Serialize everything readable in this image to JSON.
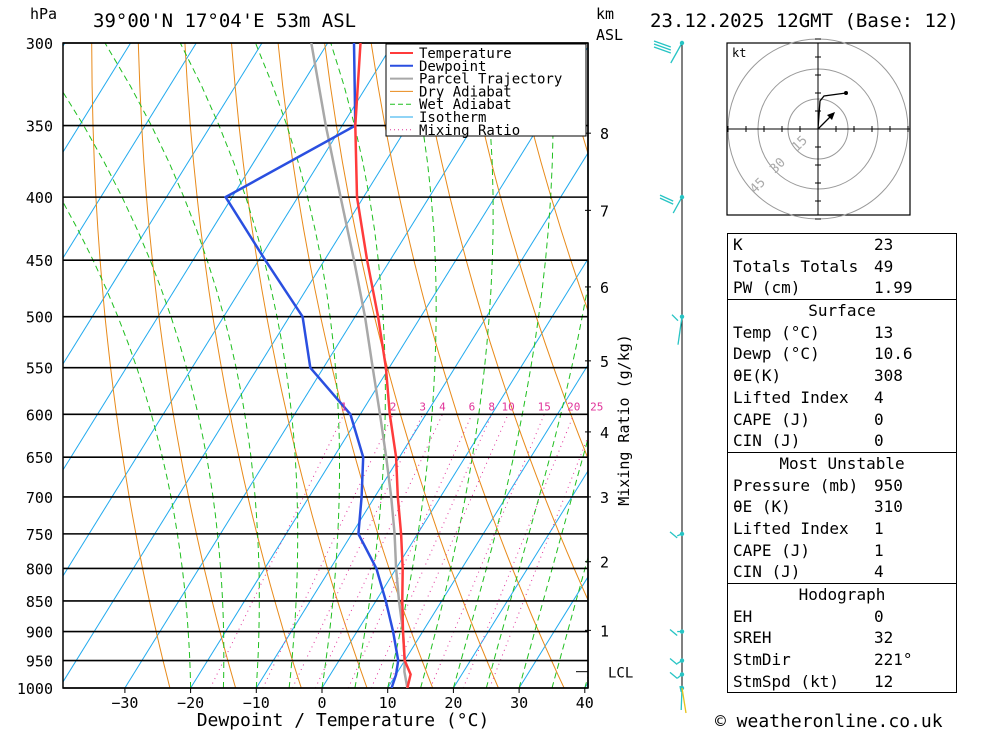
{
  "header": {
    "location": "39°00'N 17°04'E 53m ASL",
    "datetime": "23.12.2025 12GMT (Base: 12)",
    "hpa_label": "hPa",
    "km_label": "km",
    "asl_label": "ASL",
    "copyright": "© weatheronline.co.uk"
  },
  "colors": {
    "temperature": "#ff3b3b",
    "dewpoint": "#2a4fe0",
    "parcel": "#a8a8a8",
    "dry_adiabat": "#e88a1a",
    "wet_adiabat": "#1fbf1f",
    "isotherm": "#22aaee",
    "mixing_ratio": "#e0349a",
    "wind": "#27c4c4"
  },
  "chart_data": {
    "type": "line",
    "title": "Skew-T log-P diagram",
    "xlabel": "Dewpoint / Temperature (°C)",
    "ylabel": "hPa",
    "secondary_ylabel": "Mixing Ratio (g/kg)",
    "xlim": [
      -40,
      40
    ],
    "ylim": [
      1000,
      300
    ],
    "x_ticks": [
      -30,
      -20,
      -10,
      0,
      10,
      20,
      30,
      40
    ],
    "x_tick_labels": [
      "−30",
      "−20",
      "−10",
      "0",
      "10",
      "20",
      "30",
      "40"
    ],
    "pressure_levels": [
      300,
      350,
      400,
      450,
      500,
      550,
      600,
      650,
      700,
      750,
      800,
      850,
      900,
      950,
      1000
    ],
    "pressure_labels": [
      "300",
      "350",
      "400",
      "450",
      "500",
      "550",
      "600",
      "650",
      "700",
      "750",
      "800",
      "850",
      "900",
      "950",
      "1000"
    ],
    "km_ticks": [
      {
        "label": "8",
        "p": 355
      },
      {
        "label": "7",
        "p": 410
      },
      {
        "label": "6",
        "p": 473
      },
      {
        "label": "5",
        "p": 543
      },
      {
        "label": "4",
        "p": 620
      },
      {
        "label": "3",
        "p": 700
      },
      {
        "label": "2",
        "p": 790
      },
      {
        "label": "1",
        "p": 898
      }
    ],
    "lcl_label": "LCL",
    "lcl_p": 970,
    "mixing_ratio_labels": [
      "1",
      "2",
      "3",
      "4",
      "6",
      "8",
      "10",
      "15",
      "20",
      "25"
    ],
    "legend": [
      "Temperature",
      "Dewpoint",
      "Parcel Trajectory",
      "Dry Adiabat",
      "Wet Adiabat",
      "Isotherm",
      "Mixing Ratio"
    ],
    "series": [
      {
        "name": "Temperature",
        "p": [
          1000,
          975,
          950,
          900,
          850,
          800,
          750,
          700,
          650,
          600,
          550,
          500,
          450,
          400,
          350,
          300
        ],
        "t": [
          13.0,
          12.2,
          10.0,
          7.0,
          4.0,
          1.0,
          -2.5,
          -6.5,
          -10.5,
          -15.5,
          -20.5,
          -26.5,
          -33.5,
          -41.0,
          -48.0,
          -55.0
        ]
      },
      {
        "name": "Dewpoint",
        "p": [
          1000,
          975,
          950,
          900,
          850,
          800,
          750,
          700,
          650,
          600,
          550,
          500,
          450,
          400,
          350,
          300
        ],
        "t": [
          10.6,
          10.0,
          9.0,
          5.5,
          1.5,
          -3.0,
          -9.0,
          -12.0,
          -15.5,
          -21.5,
          -32.0,
          -38.0,
          -49.0,
          -61.0,
          -48.0,
          -56.0
        ]
      },
      {
        "name": "Parcel Trajectory",
        "p": [
          1000,
          970,
          950,
          900,
          850,
          800,
          750,
          700,
          650,
          600,
          550,
          500,
          450,
          400,
          350,
          300
        ],
        "t": [
          13.0,
          11.0,
          10.0,
          7.0,
          3.5,
          0.0,
          -3.5,
          -7.5,
          -12.0,
          -17.0,
          -22.5,
          -28.5,
          -35.5,
          -43.5,
          -52.5,
          -62.5
        ]
      }
    ],
    "hodograph": {
      "unit_label": "kt",
      "ring_labels": [
        "15",
        "30",
        "45"
      ]
    }
  },
  "indices": [
    {
      "label": "K",
      "value": "23"
    },
    {
      "label": "Totals Totals",
      "value": "49"
    },
    {
      "label": "PW (cm)",
      "value": "1.99"
    }
  ],
  "surface": {
    "title": "Surface",
    "rows": [
      {
        "label": "Temp (°C)",
        "value": "13"
      },
      {
        "label": "Dewp (°C)",
        "value": "10.6"
      },
      {
        "label": "θE(K)",
        "value": "308"
      },
      {
        "label": "Lifted Index",
        "value": "4"
      },
      {
        "label": "CAPE (J)",
        "value": "0"
      },
      {
        "label": "CIN (J)",
        "value": "0"
      }
    ]
  },
  "most_unstable": {
    "title": "Most Unstable",
    "rows": [
      {
        "label": "Pressure (mb)",
        "value": "950"
      },
      {
        "label": "θE (K)",
        "value": "310"
      },
      {
        "label": "Lifted Index",
        "value": "1"
      },
      {
        "label": "CAPE (J)",
        "value": "1"
      },
      {
        "label": "CIN (J)",
        "value": "4"
      }
    ]
  },
  "hodograph_table": {
    "title": "Hodograph",
    "rows": [
      {
        "label": "EH",
        "value": "0"
      },
      {
        "label": "SREH",
        "value": "32"
      },
      {
        "label": "StmDir",
        "value": "221°"
      },
      {
        "label": "StmSpd (kt)",
        "value": "12"
      }
    ]
  }
}
